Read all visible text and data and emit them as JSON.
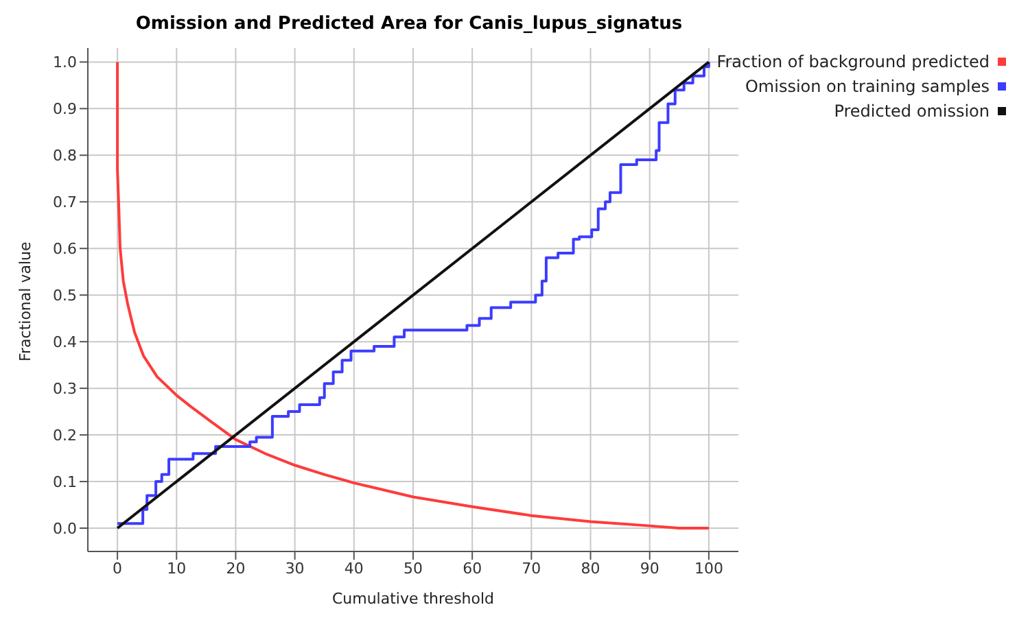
{
  "chart_data": {
    "type": "line",
    "title": "Omission and Predicted Area for Canis_lupus_signatus",
    "xlabel": "Cumulative threshold",
    "ylabel": "Fractional value",
    "xlim": [
      -5,
      105
    ],
    "xticks": [
      0,
      10,
      20,
      30,
      40,
      50,
      60,
      70,
      80,
      90,
      100
    ],
    "ylim": [
      -0.05,
      1.03
    ],
    "yticks": [
      {
        "value": 0,
        "label": "0.0"
      },
      {
        "value": 0.1,
        "label": "0.1"
      },
      {
        "value": 0.2,
        "label": "0.2"
      },
      {
        "value": 0.3,
        "label": "0.3"
      },
      {
        "value": 0.4,
        "label": "0.4"
      },
      {
        "value": 0.5,
        "label": "0.5"
      },
      {
        "value": 0.6,
        "label": "0.6"
      },
      {
        "value": 0.7,
        "label": "0.7"
      },
      {
        "value": 0.8,
        "label": "0.8"
      },
      {
        "value": 0.9,
        "label": "0.9"
      },
      {
        "value": 1,
        "label": "1.0"
      }
    ],
    "grid": true,
    "legend": "top right",
    "marker": "none",
    "line_style": "solid",
    "series": [
      {
        "name": "Fraction of background predicted",
        "color": "#ff3b3b",
        "x": [
          0,
          0,
          0.23,
          0.46,
          1,
          1.75,
          2.9,
          4.4,
          6.7,
          10,
          12.5,
          15.9,
          20,
          25,
          30,
          35,
          40,
          45,
          50,
          60,
          70,
          80,
          90,
          95,
          100
        ],
        "values": [
          1,
          0.77,
          0.69,
          0.6,
          0.53,
          0.48,
          0.42,
          0.37,
          0.325,
          0.285,
          0.26,
          0.228,
          0.19,
          0.16,
          0.135,
          0.115,
          0.097,
          0.082,
          0.067,
          0.046,
          0.027,
          0.014,
          0.005,
          0,
          0
        ]
      },
      {
        "name": "Omission on training samples",
        "color": "#3c3cff",
        "type": "step",
        "x": [
          0,
          4.3,
          5,
          6.5,
          7.5,
          8.7,
          12.8,
          16.6,
          22.4,
          23.5,
          26.2,
          28.9,
          30.8,
          34.2,
          35,
          36.5,
          38,
          39.5,
          43.4,
          46.8,
          48.5,
          59.1,
          61.2,
          63.2,
          66.5,
          70.7,
          71.8,
          72.5,
          74.5,
          77.1,
          78.1,
          80.2,
          81.3,
          82.5,
          83.3,
          85.1,
          87.8,
          91.1,
          91.6,
          93.1,
          94.3,
          95.8,
          97.3,
          99.2,
          100
        ],
        "values": [
          0.01,
          0.04,
          0.07,
          0.1,
          0.115,
          0.148,
          0.16,
          0.175,
          0.185,
          0.195,
          0.24,
          0.25,
          0.265,
          0.28,
          0.31,
          0.335,
          0.36,
          0.38,
          0.39,
          0.41,
          0.425,
          0.435,
          0.45,
          0.473,
          0.485,
          0.5,
          0.53,
          0.58,
          0.59,
          0.62,
          0.625,
          0.64,
          0.685,
          0.7,
          0.72,
          0.78,
          0.79,
          0.81,
          0.87,
          0.91,
          0.94,
          0.955,
          0.97,
          0.99,
          1
        ]
      },
      {
        "name": "Predicted omission",
        "color": "#111111",
        "x": [
          0,
          100
        ],
        "values": [
          0,
          1
        ]
      }
    ]
  }
}
